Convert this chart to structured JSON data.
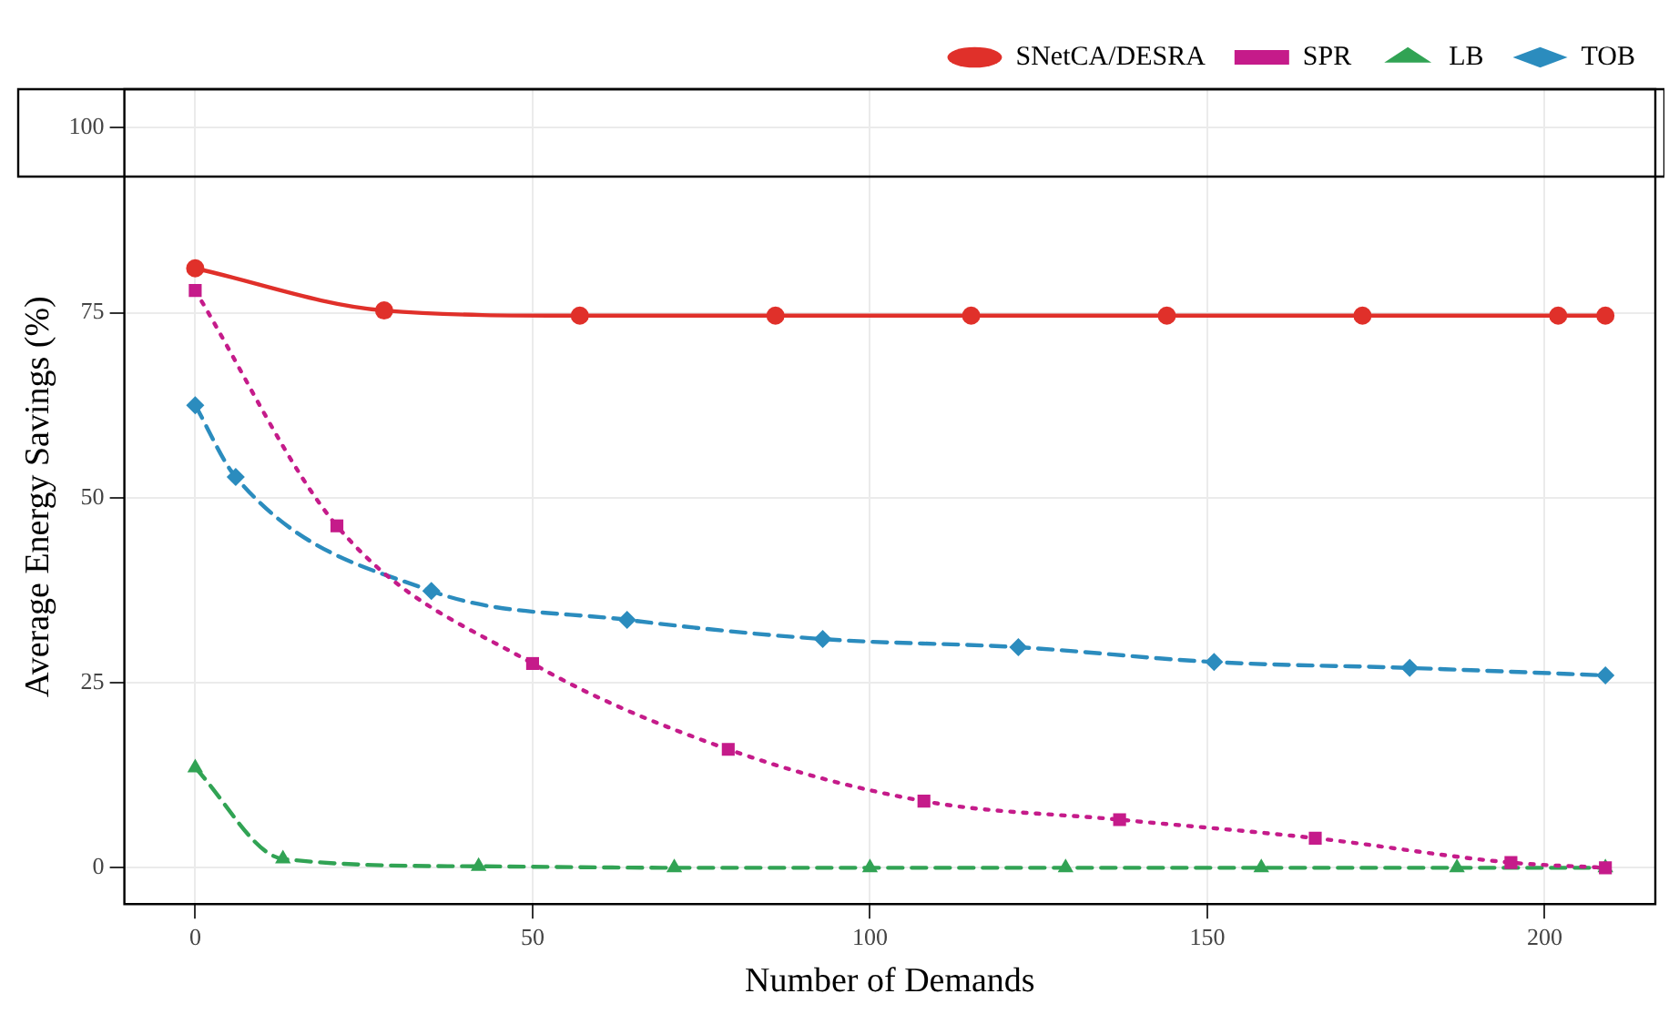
{
  "chart_data": {
    "type": "line",
    "xlabel": "Number of Demands",
    "ylabel": "Average Energy Savings (%)",
    "xlim": [
      -10.5,
      216.4
    ],
    "xticks": [
      0,
      50,
      100,
      150,
      200
    ],
    "ylim": [
      -4.9,
      105.2
    ],
    "yticks": [
      0,
      25,
      50,
      75,
      100
    ],
    "grid": true,
    "legend": "top right",
    "series": [
      {
        "name": "SNetCA/DESRA",
        "color": "#e0302a",
        "marker": "circle",
        "line_style": "solid",
        "x": [
          0,
          28,
          57,
          86,
          115,
          144,
          173,
          202,
          209
        ],
        "values": [
          81,
          75.3,
          74.6,
          74.6,
          74.6,
          74.6,
          74.6,
          74.6,
          74.6
        ]
      },
      {
        "name": "SPR",
        "color": "#c51b8a",
        "marker": "square",
        "line_style": "dotted",
        "x": [
          0,
          21,
          50,
          79,
          108,
          137,
          166,
          195,
          209
        ],
        "values": [
          78,
          46.2,
          27.6,
          16,
          9,
          6.5,
          4,
          0.7,
          0
        ]
      },
      {
        "name": "LB",
        "color": "#31a354",
        "marker": "triangle",
        "line_style": "dashed",
        "x": [
          0,
          13,
          42,
          71,
          100,
          129,
          158,
          187,
          209
        ],
        "values": [
          13.5,
          1.2,
          0.2,
          0,
          0,
          0,
          0,
          0,
          0
        ]
      },
      {
        "name": "TOB",
        "color": "#2b8cbe",
        "marker": "diamond",
        "line_style": "dashed",
        "x": [
          0,
          6,
          35,
          64,
          93,
          122,
          151,
          180,
          209
        ],
        "values": [
          62.5,
          52.8,
          37.4,
          33.5,
          30.9,
          29.8,
          27.8,
          27,
          26
        ]
      }
    ]
  }
}
